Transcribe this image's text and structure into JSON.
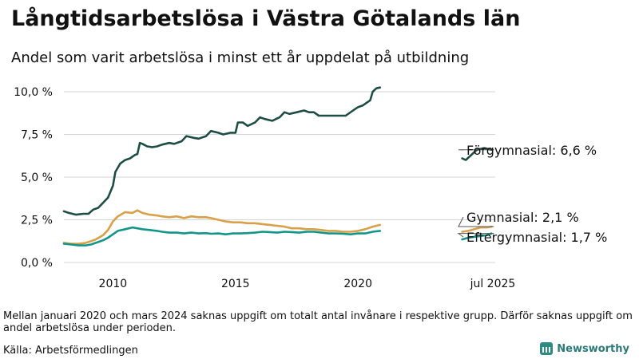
{
  "header": {
    "title": "Långtidsarbetslösa i Västra Götalands län",
    "subtitle": "Andel som varit arbetslösa i minst ett år uppdelat på utbildning"
  },
  "footer": {
    "note": "Mellan januari 2020 och mars 2024 saknas uppgift om totalt antal invånare i respektive grupp. Därför saknas uppgift om andel arbetslösa under perioden.",
    "source": "Källa: Arbetsförmedlingen",
    "brand": "Newsworthy"
  },
  "colors": {
    "forgymnasial": "#1e4d45",
    "gymnasial": "#d9a04a",
    "eftergymnasial": "#13958a",
    "grid": "#d4d4d4",
    "text": "#111111"
  },
  "chart_data": {
    "type": "line",
    "title": "Långtidsarbetslösa i Västra Götalands län",
    "xlabel": "",
    "ylabel": "",
    "xlim": [
      2008.0,
      2025.6
    ],
    "ylim": [
      0,
      10.5
    ],
    "y_ticks": [
      0,
      2.5,
      5.0,
      7.5,
      10.0
    ],
    "y_tick_labels": [
      "0,0 %",
      "2,5 %",
      "5,0 %",
      "7,5 %",
      "10,0 %"
    ],
    "x_ticks": [
      2010,
      2015,
      2020,
      2025.5
    ],
    "x_tick_labels": [
      "2010",
      "2015",
      "2020",
      "jul 2025"
    ],
    "grid": true,
    "gap": [
      2020.95,
      2024.2
    ],
    "series": [
      {
        "name": "Förgymnasial",
        "end_label": "Förgymnasial: 6,6 %",
        "color": "#1e4d45",
        "segments": [
          [
            [
              2008.0,
              3.0
            ],
            [
              2008.2,
              2.9
            ],
            [
              2008.5,
              2.8
            ],
            [
              2008.8,
              2.85
            ],
            [
              2009.0,
              2.85
            ],
            [
              2009.2,
              3.1
            ],
            [
              2009.4,
              3.2
            ],
            [
              2009.6,
              3.5
            ],
            [
              2009.8,
              3.8
            ],
            [
              2010.0,
              4.5
            ],
            [
              2010.1,
              5.3
            ],
            [
              2010.3,
              5.8
            ],
            [
              2010.5,
              6.0
            ],
            [
              2010.7,
              6.1
            ],
            [
              2010.9,
              6.3
            ],
            [
              2011.0,
              6.35
            ],
            [
              2011.1,
              7.0
            ],
            [
              2011.2,
              6.95
            ],
            [
              2011.4,
              6.8
            ],
            [
              2011.6,
              6.75
            ],
            [
              2011.8,
              6.8
            ],
            [
              2012.0,
              6.9
            ],
            [
              2012.3,
              7.0
            ],
            [
              2012.5,
              6.95
            ],
            [
              2012.8,
              7.1
            ],
            [
              2013.0,
              7.4
            ],
            [
              2013.3,
              7.3
            ],
            [
              2013.5,
              7.25
            ],
            [
              2013.8,
              7.4
            ],
            [
              2014.0,
              7.7
            ],
            [
              2014.3,
              7.6
            ],
            [
              2014.5,
              7.5
            ],
            [
              2014.8,
              7.6
            ],
            [
              2015.0,
              7.6
            ],
            [
              2015.1,
              8.2
            ],
            [
              2015.3,
              8.2
            ],
            [
              2015.5,
              8.0
            ],
            [
              2015.8,
              8.2
            ],
            [
              2016.0,
              8.5
            ],
            [
              2016.2,
              8.4
            ],
            [
              2016.5,
              8.3
            ],
            [
              2016.8,
              8.5
            ],
            [
              2017.0,
              8.8
            ],
            [
              2017.2,
              8.7
            ],
            [
              2017.5,
              8.8
            ],
            [
              2017.8,
              8.9
            ],
            [
              2018.0,
              8.8
            ],
            [
              2018.2,
              8.8
            ],
            [
              2018.4,
              8.6
            ],
            [
              2018.7,
              8.6
            ],
            [
              2019.0,
              8.6
            ],
            [
              2019.2,
              8.6
            ],
            [
              2019.5,
              8.6
            ],
            [
              2019.8,
              8.9
            ],
            [
              2020.0,
              9.1
            ],
            [
              2020.2,
              9.2
            ],
            [
              2020.4,
              9.4
            ],
            [
              2020.5,
              9.5
            ],
            [
              2020.6,
              10.0
            ],
            [
              2020.75,
              10.2
            ],
            [
              2020.9,
              10.25
            ]
          ],
          [
            [
              2024.25,
              6.1
            ],
            [
              2024.4,
              6.0
            ],
            [
              2024.55,
              6.2
            ],
            [
              2024.7,
              6.4
            ],
            [
              2024.85,
              6.6
            ],
            [
              2025.0,
              6.65
            ],
            [
              2025.15,
              6.7
            ],
            [
              2025.3,
              6.65
            ],
            [
              2025.45,
              6.6
            ]
          ]
        ]
      },
      {
        "name": "Gymnasial",
        "end_label": "Gymnasial: 2,1 %",
        "color": "#d9a04a",
        "segments": [
          [
            [
              2008.0,
              1.15
            ],
            [
              2008.3,
              1.1
            ],
            [
              2008.6,
              1.1
            ],
            [
              2008.9,
              1.15
            ],
            [
              2009.1,
              1.25
            ],
            [
              2009.3,
              1.35
            ],
            [
              2009.6,
              1.6
            ],
            [
              2009.8,
              1.9
            ],
            [
              2010.0,
              2.4
            ],
            [
              2010.2,
              2.7
            ],
            [
              2010.5,
              2.95
            ],
            [
              2010.8,
              2.9
            ],
            [
              2011.0,
              3.05
            ],
            [
              2011.2,
              2.9
            ],
            [
              2011.5,
              2.8
            ],
            [
              2011.8,
              2.75
            ],
            [
              2012.0,
              2.7
            ],
            [
              2012.3,
              2.65
            ],
            [
              2012.6,
              2.7
            ],
            [
              2012.9,
              2.6
            ],
            [
              2013.2,
              2.7
            ],
            [
              2013.5,
              2.65
            ],
            [
              2013.8,
              2.65
            ],
            [
              2014.0,
              2.6
            ],
            [
              2014.3,
              2.5
            ],
            [
              2014.6,
              2.4
            ],
            [
              2014.9,
              2.35
            ],
            [
              2015.2,
              2.35
            ],
            [
              2015.5,
              2.3
            ],
            [
              2015.8,
              2.3
            ],
            [
              2016.1,
              2.25
            ],
            [
              2016.4,
              2.2
            ],
            [
              2016.7,
              2.15
            ],
            [
              2017.0,
              2.1
            ],
            [
              2017.3,
              2.0
            ],
            [
              2017.6,
              2.0
            ],
            [
              2017.9,
              1.95
            ],
            [
              2018.2,
              1.95
            ],
            [
              2018.5,
              1.9
            ],
            [
              2018.8,
              1.85
            ],
            [
              2019.1,
              1.85
            ],
            [
              2019.4,
              1.8
            ],
            [
              2019.7,
              1.8
            ],
            [
              2020.0,
              1.85
            ],
            [
              2020.3,
              1.95
            ],
            [
              2020.6,
              2.1
            ],
            [
              2020.9,
              2.2
            ]
          ],
          [
            [
              2024.25,
              1.8
            ],
            [
              2024.5,
              1.85
            ],
            [
              2024.75,
              1.95
            ],
            [
              2025.0,
              2.05
            ],
            [
              2025.25,
              2.05
            ],
            [
              2025.45,
              2.1
            ]
          ]
        ]
      },
      {
        "name": "Eftergymnasial",
        "end_label": "Eftergymnasial: 1,7 %",
        "color": "#13958a",
        "segments": [
          [
            [
              2008.0,
              1.1
            ],
            [
              2008.3,
              1.05
            ],
            [
              2008.6,
              1.0
            ],
            [
              2008.9,
              1.0
            ],
            [
              2009.1,
              1.05
            ],
            [
              2009.3,
              1.15
            ],
            [
              2009.6,
              1.3
            ],
            [
              2009.8,
              1.45
            ],
            [
              2010.0,
              1.65
            ],
            [
              2010.2,
              1.85
            ],
            [
              2010.5,
              1.95
            ],
            [
              2010.8,
              2.05
            ],
            [
              2011.0,
              2.0
            ],
            [
              2011.2,
              1.95
            ],
            [
              2011.5,
              1.9
            ],
            [
              2011.8,
              1.85
            ],
            [
              2012.0,
              1.8
            ],
            [
              2012.3,
              1.75
            ],
            [
              2012.6,
              1.75
            ],
            [
              2012.9,
              1.7
            ],
            [
              2013.2,
              1.75
            ],
            [
              2013.5,
              1.7
            ],
            [
              2013.8,
              1.72
            ],
            [
              2014.0,
              1.68
            ],
            [
              2014.3,
              1.7
            ],
            [
              2014.6,
              1.65
            ],
            [
              2014.9,
              1.7
            ],
            [
              2015.2,
              1.7
            ],
            [
              2015.5,
              1.72
            ],
            [
              2015.8,
              1.75
            ],
            [
              2016.1,
              1.8
            ],
            [
              2016.4,
              1.78
            ],
            [
              2016.7,
              1.75
            ],
            [
              2017.0,
              1.8
            ],
            [
              2017.3,
              1.78
            ],
            [
              2017.6,
              1.75
            ],
            [
              2017.9,
              1.8
            ],
            [
              2018.2,
              1.8
            ],
            [
              2018.5,
              1.75
            ],
            [
              2018.8,
              1.7
            ],
            [
              2019.1,
              1.7
            ],
            [
              2019.4,
              1.68
            ],
            [
              2019.7,
              1.65
            ],
            [
              2020.0,
              1.7
            ],
            [
              2020.3,
              1.7
            ],
            [
              2020.6,
              1.8
            ],
            [
              2020.9,
              1.85
            ]
          ],
          [
            [
              2024.25,
              1.35
            ],
            [
              2024.5,
              1.45
            ],
            [
              2024.75,
              1.5
            ],
            [
              2025.0,
              1.55
            ],
            [
              2025.25,
              1.6
            ],
            [
              2025.45,
              1.7
            ]
          ]
        ]
      }
    ]
  }
}
